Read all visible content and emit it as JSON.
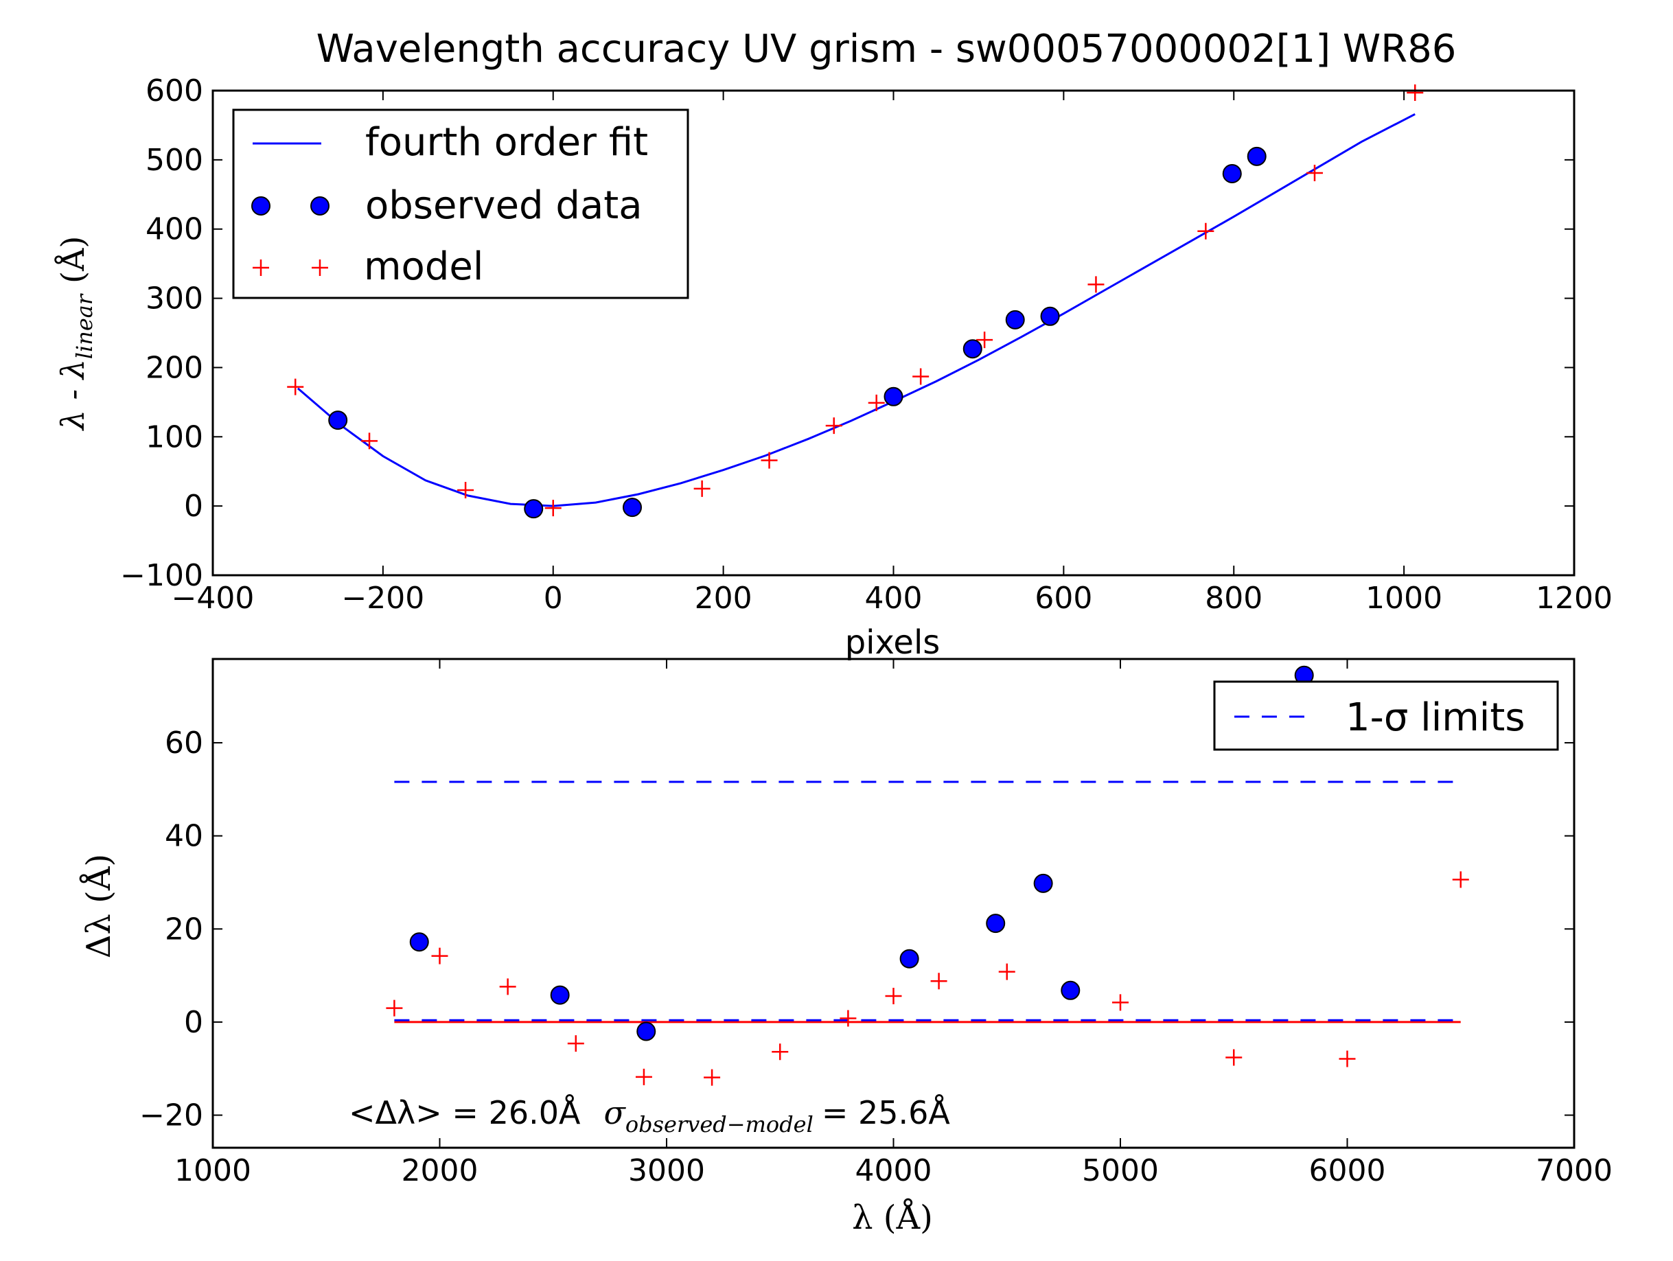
{
  "colors": {
    "fit_line": "#0000ff",
    "observed_marker": "#0000ff",
    "model_marker": "#ff0000",
    "sigma_line": "#0000ff",
    "zero_line": "#ff0000",
    "axes": "#000000",
    "background": "#ffffff"
  },
  "chart_data": [
    {
      "type": "scatter",
      "title": "Wavelength accuracy UV grism - sw00057000002[1] WR86",
      "xlabel": "pixels",
      "ylabel": "λ - λlinear  (Å)",
      "ylabel_parts": {
        "main": "λ - λ",
        "subscript": "linear",
        "unit": "(Å)"
      },
      "xlim": [
        -400,
        1200
      ],
      "ylim": [
        -100,
        600
      ],
      "xticks": [
        -400,
        -200,
        0,
        200,
        400,
        600,
        800,
        1000,
        1200
      ],
      "yticks": [
        -100,
        0,
        100,
        200,
        300,
        400,
        500,
        600
      ],
      "xtick_labels": [
        "−400",
        "−200",
        "0",
        "200",
        "400",
        "600",
        "800",
        "1000",
        "1200"
      ],
      "ytick_labels": [
        "−100",
        "0",
        "100",
        "200",
        "300",
        "400",
        "500",
        "600"
      ],
      "legend_placement": "top-left",
      "legend": [
        "fourth order fit",
        "observed data",
        "model"
      ],
      "grid": false,
      "series": [
        {
          "name": "fourth order fit",
          "kind": "line",
          "x": [
            -300,
            -250,
            -200,
            -150,
            -100,
            -50,
            0,
            50,
            100,
            150,
            200,
            250,
            300,
            350,
            400,
            450,
            500,
            550,
            600,
            650,
            700,
            750,
            800,
            850,
            900,
            950,
            1013
          ],
          "y": [
            170,
            117,
            72,
            37,
            15,
            3,
            0,
            5,
            17,
            33,
            52,
            73,
            97,
            123,
            151,
            180,
            211,
            244,
            278,
            313,
            348,
            383,
            418,
            454,
            490,
            526,
            566
          ]
        },
        {
          "name": "observed data",
          "kind": "circle",
          "x": [
            -253,
            -23,
            93,
            400,
            493,
            543,
            584,
            798,
            827
          ],
          "y": [
            124,
            -4,
            -2,
            158,
            227,
            269,
            274,
            480,
            505
          ]
        },
        {
          "name": "model",
          "kind": "plus",
          "x": [
            -303,
            -216,
            -103,
            0,
            93,
            175,
            254,
            330,
            380,
            432,
            507,
            638,
            767,
            895,
            1013
          ],
          "y": [
            172,
            94,
            23,
            -3,
            0,
            25,
            66,
            116,
            149,
            187,
            240,
            320,
            397,
            481,
            597
          ]
        }
      ]
    },
    {
      "type": "scatter",
      "xlabel": "λ (Å)",
      "ylabel": "Δλ (Å)",
      "xlim": [
        1000,
        7000
      ],
      "ylim": [
        -27,
        78
      ],
      "xticks": [
        1000,
        2000,
        3000,
        4000,
        5000,
        6000,
        7000
      ],
      "yticks": [
        -20,
        0,
        20,
        40,
        60
      ],
      "xtick_labels": [
        "1000",
        "2000",
        "3000",
        "4000",
        "5000",
        "6000",
        "7000"
      ],
      "ytick_labels": [
        "−20",
        "0",
        "20",
        "40",
        "60"
      ],
      "legend_placement": "top-right",
      "legend": [
        "1-σ limits"
      ],
      "grid": false,
      "annotation": {
        "mean": "<Δλ> = 26.0Å",
        "sigma_symbol": "σ",
        "sigma_subscript": "observed−model",
        "sigma_value": "= 25.6Å"
      },
      "series": [
        {
          "name": "1-σ limits",
          "kind": "dashed-hline",
          "x": [
            1800,
            6500
          ],
          "y_values": [
            51.6,
            0.4
          ]
        },
        {
          "kind": "hline",
          "x": [
            1800,
            6500
          ],
          "y": 0
        },
        {
          "kind": "circle",
          "x": [
            1910,
            2530,
            2910,
            4070,
            4450,
            4660,
            4780,
            5810
          ],
          "y": [
            17.2,
            5.8,
            -2.0,
            13.6,
            21.2,
            29.8,
            6.8,
            74.5
          ]
        },
        {
          "kind": "plus",
          "x": [
            1800,
            2000,
            2300,
            2600,
            2900,
            3200,
            3500,
            3800,
            4000,
            4200,
            4500,
            5000,
            5500,
            6000,
            6500
          ],
          "y": [
            3.0,
            14.2,
            7.6,
            -4.6,
            -11.8,
            -11.9,
            -6.4,
            0.8,
            5.6,
            8.8,
            10.8,
            4.2,
            -7.6,
            -7.9,
            30.6
          ]
        }
      ]
    }
  ]
}
